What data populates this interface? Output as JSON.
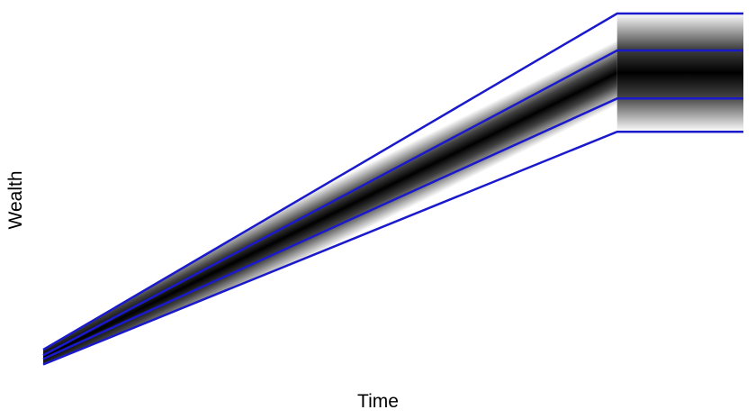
{
  "chart_data": {
    "type": "area",
    "xlabel": "Time",
    "ylabel": "Wealth",
    "grid": false,
    "x": [
      0,
      1,
      1.22
    ],
    "xlim": [
      0,
      1.22
    ],
    "ylim": [
      0,
      1
    ],
    "bands": [
      {
        "lower": [
          0.05,
          0.68,
          0.68
        ],
        "upper": [
          0.09,
          1.0,
          1.0
        ]
      },
      {
        "lower": [
          0.065,
          0.77,
          0.77
        ],
        "upper": [
          0.075,
          0.9,
          0.9
        ]
      }
    ],
    "lines": [
      {
        "y": [
          0.05,
          0.68,
          0.68
        ]
      },
      {
        "y": [
          0.065,
          0.77,
          0.77
        ]
      },
      {
        "y": [
          0.075,
          0.9,
          0.9
        ]
      },
      {
        "y": [
          0.09,
          1.0,
          1.0
        ]
      }
    ],
    "colors": {
      "line": "#1a1acc",
      "band_center": "#000000",
      "band_edge": "#ffffff"
    }
  }
}
